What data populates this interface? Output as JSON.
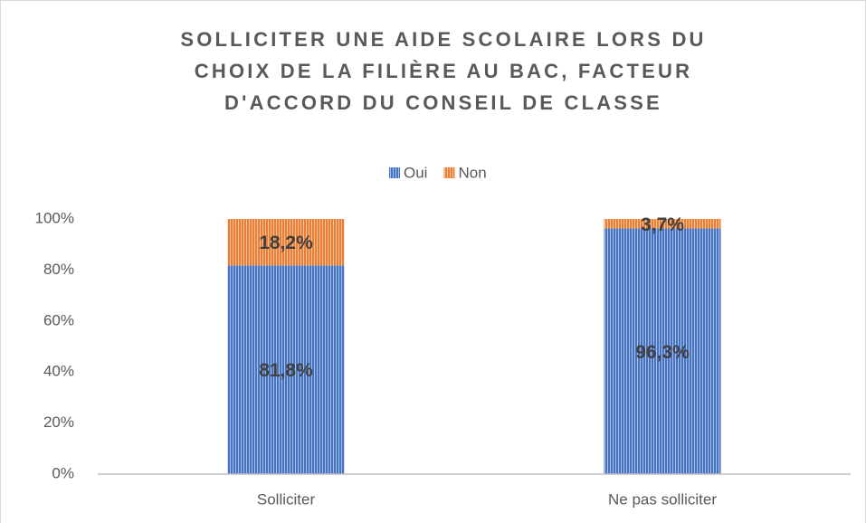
{
  "chart_data": {
    "type": "bar",
    "stacked": true,
    "title": [
      "SOLLICITER UNE AIDE SCOLAIRE LORS DU",
      "CHOIX DE LA FILIÈRE AU BAC, FACTEUR",
      "D'ACCORD DU CONSEIL DE CLASSE"
    ],
    "categories": [
      "Solliciter",
      "Ne pas solliciter"
    ],
    "series": [
      {
        "name": "Oui",
        "color": "#4472c4",
        "values": [
          81.8,
          96.3
        ],
        "value_labels": [
          "81,8%",
          "96,3%"
        ]
      },
      {
        "name": "Non",
        "color": "#ed7d31",
        "values": [
          18.2,
          3.7
        ],
        "value_labels": [
          "18,2%",
          "3,7%"
        ]
      }
    ],
    "ylim": [
      0,
      100
    ],
    "yticks": [
      {
        "value": 0,
        "label": "0%"
      },
      {
        "value": 20,
        "label": "20%"
      },
      {
        "value": 40,
        "label": "40%"
      },
      {
        "value": 60,
        "label": "60%"
      },
      {
        "value": 80,
        "label": "80%"
      },
      {
        "value": 100,
        "label": "100%"
      }
    ],
    "grid": false,
    "legend": "top"
  }
}
